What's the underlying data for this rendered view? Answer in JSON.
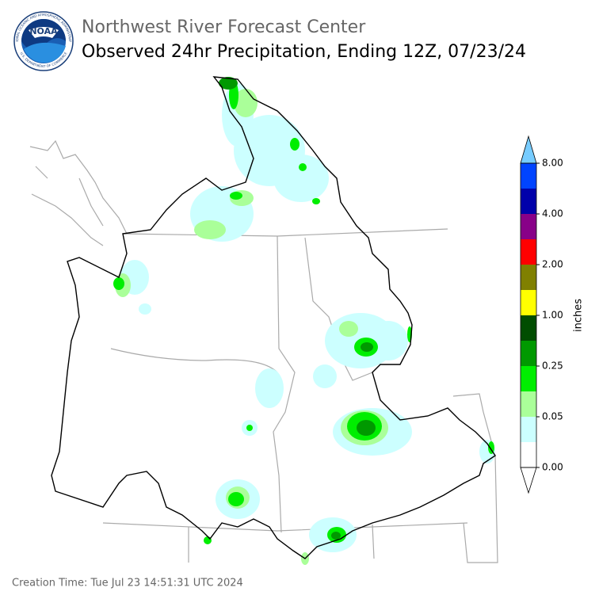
{
  "header": {
    "title": "Northwest River Forecast Center",
    "subtitle": "Observed 24hr Precipitation, Ending 12Z, 07/23/24",
    "logo_text": "NOAA",
    "logo_ring_top": "NATIONAL OCEANIC AND ATMOSPHERIC ADMINISTRATION",
    "logo_ring_bottom": "U.S. DEPARTMENT OF COMMERCE"
  },
  "colorbar": {
    "label": "inches",
    "colors": [
      "#ffffff",
      "#ccffff",
      "#aaff99",
      "#00ee00",
      "#009900",
      "#004d00",
      "#ffff00",
      "#808000",
      "#ff0000",
      "#880088",
      "#0000aa",
      "#0044ff"
    ],
    "over_color": "#77ccff",
    "under_color": "#ffffff",
    "ticks": [
      {
        "value": 0,
        "label": "0.00"
      },
      {
        "value": 0.05,
        "label": "0.05"
      },
      {
        "value": 0.25,
        "label": "0.25"
      },
      {
        "value": 1,
        "label": "1.00"
      },
      {
        "value": 2,
        "label": "2.00"
      },
      {
        "value": 4,
        "label": "4.00"
      },
      {
        "value": 8,
        "label": "8.00"
      }
    ]
  },
  "footer": {
    "creation_time": "Creation Time: Tue Jul 23 14:51:31 UTC 2024"
  }
}
